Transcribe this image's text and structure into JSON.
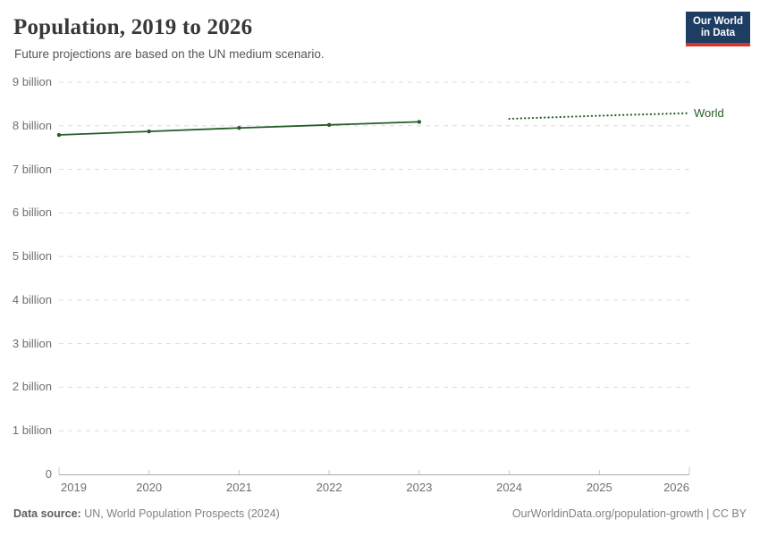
{
  "header": {
    "title": "Population, 2019 to 2026",
    "subtitle": "Future projections are based on the UN medium scenario.",
    "logo": {
      "line1": "Our World",
      "line2": "in Data",
      "bg_color": "#1d3d63",
      "accent_color": "#d8352b"
    }
  },
  "chart_data": {
    "type": "line",
    "title": "Population, 2019 to 2026",
    "subtitle": "Future projections are based on the UN medium scenario.",
    "entity_label": "World",
    "line_color": "#255d27",
    "grid": "horizontal-dashed",
    "grid_color": "#dcdcdc",
    "axis_color": "#a8a8a8",
    "xlim": [
      2019,
      2026
    ],
    "ylim_billion": [
      0,
      9
    ],
    "x_ticks": [
      "2019",
      "2020",
      "2021",
      "2022",
      "2023",
      "2024",
      "2025",
      "2026"
    ],
    "y_ticks": [
      {
        "value": 0,
        "label": "0"
      },
      {
        "value": 1,
        "label": "1 billion"
      },
      {
        "value": 2,
        "label": "2 billion"
      },
      {
        "value": 3,
        "label": "3 billion"
      },
      {
        "value": 4,
        "label": "4 billion"
      },
      {
        "value": 5,
        "label": "5 billion"
      },
      {
        "value": 6,
        "label": "6 billion"
      },
      {
        "value": 7,
        "label": "7 billion"
      },
      {
        "value": 8,
        "label": "8 billion"
      },
      {
        "value": 9,
        "label": "9 billion"
      }
    ],
    "series": [
      {
        "name": "World (observed)",
        "style": "solid",
        "markers": true,
        "x": [
          2019,
          2020,
          2021,
          2022,
          2023
        ],
        "values_billion": [
          7.79,
          7.87,
          7.95,
          8.02,
          8.09
        ]
      },
      {
        "name": "World (UN medium projection)",
        "style": "dotted",
        "markers": false,
        "x": [
          2024,
          2025,
          2026
        ],
        "values_billion": [
          8.16,
          8.23,
          8.29
        ]
      }
    ]
  },
  "footer": {
    "source_label": "Data source:",
    "source_text": " UN, World Population Prospects (2024)",
    "link_text": "OurWorldinData.org/population-growth | CC BY"
  }
}
